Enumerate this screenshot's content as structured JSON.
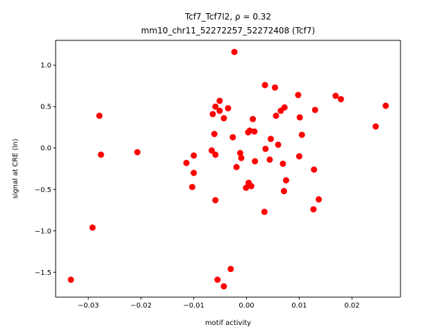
{
  "chart_data": {
    "type": "scatter",
    "title_line1": "Tcf7_Tcf7l2, ρ = 0.32",
    "title_line2": "mm10_chr11_52272257_52272408 (Tcf7)",
    "xlabel": "motif activity",
    "ylabel": "signal at CRE (ln)",
    "xlim": [
      -0.0362,
      0.0292
    ],
    "ylim": [
      -1.8,
      1.3
    ],
    "xticks": [
      -0.03,
      -0.02,
      -0.01,
      0.0,
      0.01,
      0.02
    ],
    "xtick_labels": [
      "−0.03",
      "−0.02",
      "−0.01",
      "0.00",
      "0.01",
      "0.02"
    ],
    "yticks": [
      -1.5,
      -1.0,
      -0.5,
      0.0,
      0.5,
      1.0
    ],
    "ytick_labels": [
      "−1.5",
      "−1.0",
      "−0.5",
      "0.0",
      "0.5",
      "1.0"
    ],
    "marker_color": "#ff0000",
    "grid": false,
    "points": [
      {
        "x": -0.0333,
        "y": -1.59
      },
      {
        "x": -0.0292,
        "y": -0.96
      },
      {
        "x": -0.0279,
        "y": 0.39
      },
      {
        "x": -0.0276,
        "y": -0.08
      },
      {
        "x": -0.0207,
        "y": -0.05
      },
      {
        "x": -0.0114,
        "y": -0.18
      },
      {
        "x": -0.0103,
        "y": -0.47
      },
      {
        "x": -0.01,
        "y": -0.3
      },
      {
        "x": -0.01,
        "y": -0.09
      },
      {
        "x": -0.0066,
        "y": -0.03
      },
      {
        "x": -0.0064,
        "y": 0.41
      },
      {
        "x": -0.0061,
        "y": 0.17
      },
      {
        "x": -0.0059,
        "y": 0.5
      },
      {
        "x": -0.0059,
        "y": -0.08
      },
      {
        "x": -0.0059,
        "y": -0.63
      },
      {
        "x": -0.0055,
        "y": -1.59
      },
      {
        "x": -0.0051,
        "y": 0.57
      },
      {
        "x": -0.0051,
        "y": 0.45
      },
      {
        "x": -0.0043,
        "y": 0.36
      },
      {
        "x": -0.0043,
        "y": -1.67
      },
      {
        "x": -0.0035,
        "y": 0.48
      },
      {
        "x": -0.003,
        "y": -1.46
      },
      {
        "x": -0.0026,
        "y": 0.13
      },
      {
        "x": -0.0023,
        "y": 1.16
      },
      {
        "x": -0.0019,
        "y": -0.23
      },
      {
        "x": -0.0012,
        "y": -0.06
      },
      {
        "x": -0.001,
        "y": -0.12
      },
      {
        "x": -0.0001,
        "y": -0.48
      },
      {
        "x": 0.0003,
        "y": 0.19
      },
      {
        "x": 0.0004,
        "y": -0.42
      },
      {
        "x": 0.0006,
        "y": 0.21
      },
      {
        "x": 0.0009,
        "y": -0.46
      },
      {
        "x": 0.0012,
        "y": 0.35
      },
      {
        "x": 0.0015,
        "y": 0.2
      },
      {
        "x": 0.0016,
        "y": -0.16
      },
      {
        "x": 0.0034,
        "y": -0.77
      },
      {
        "x": 0.0035,
        "y": 0.76
      },
      {
        "x": 0.0036,
        "y": -0.01
      },
      {
        "x": 0.0044,
        "y": -0.14
      },
      {
        "x": 0.0046,
        "y": 0.11
      },
      {
        "x": 0.0054,
        "y": 0.73
      },
      {
        "x": 0.0056,
        "y": 0.39
      },
      {
        "x": 0.006,
        "y": 0.04
      },
      {
        "x": 0.0065,
        "y": 0.45
      },
      {
        "x": 0.0069,
        "y": -0.19
      },
      {
        "x": 0.0071,
        "y": -0.52
      },
      {
        "x": 0.0072,
        "y": 0.49
      },
      {
        "x": 0.0075,
        "y": -0.39
      },
      {
        "x": 0.0098,
        "y": 0.64
      },
      {
        "x": 0.01,
        "y": -0.1
      },
      {
        "x": 0.0101,
        "y": 0.37
      },
      {
        "x": 0.0105,
        "y": 0.16
      },
      {
        "x": 0.0127,
        "y": -0.74
      },
      {
        "x": 0.0128,
        "y": -0.26
      },
      {
        "x": 0.013,
        "y": 0.46
      },
      {
        "x": 0.0137,
        "y": -0.62
      },
      {
        "x": 0.0169,
        "y": 0.63
      },
      {
        "x": 0.0179,
        "y": 0.59
      },
      {
        "x": 0.0245,
        "y": 0.26
      },
      {
        "x": 0.0264,
        "y": 0.51
      }
    ]
  }
}
